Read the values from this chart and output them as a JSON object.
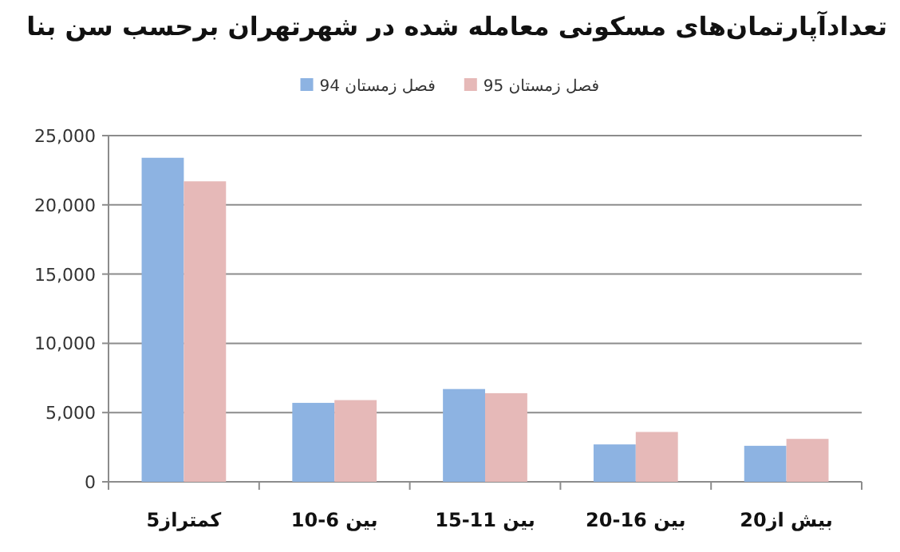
{
  "chart_data": {
    "type": "bar",
    "title": "تعدادآپارتمان‌های مسکونی معامله شده در شهرتهران برحسب سن بنا",
    "categories": [
      "کمتراز5",
      "بین 6-10",
      "بین 11-15",
      "بین 16-20",
      "بیش از20"
    ],
    "series": [
      {
        "name": "فصل زمستان 94",
        "color": "#8db3e2",
        "values": [
          23400,
          5700,
          6700,
          2700,
          2600
        ]
      },
      {
        "name": "فصل زمستان 95",
        "color": "#e6b9b8",
        "values": [
          21700,
          5900,
          6400,
          3600,
          3100
        ]
      }
    ],
    "ylim": [
      0,
      25000
    ],
    "yticks": [
      {
        "value": 0,
        "label": "0"
      },
      {
        "value": 5000,
        "label": "5,000"
      },
      {
        "value": 10000,
        "label": "10,000"
      },
      {
        "value": 15000,
        "label": "15,000"
      },
      {
        "value": 20000,
        "label": "20,000"
      },
      {
        "value": 25000,
        "label": "25,000"
      }
    ],
    "grid": "y",
    "legend": "top"
  }
}
